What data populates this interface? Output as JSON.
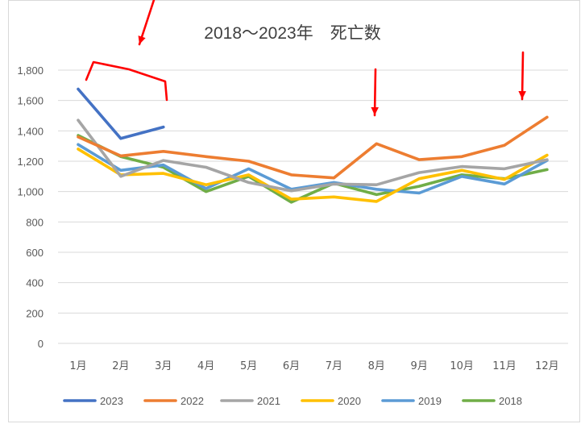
{
  "chart_data": {
    "type": "line",
    "title": "2018～2023年　死亡数",
    "xlabel": "",
    "ylabel": "",
    "categories": [
      "1月",
      "2月",
      "3月",
      "4月",
      "5月",
      "6月",
      "7月",
      "8月",
      "9月",
      "10月",
      "11月",
      "12月"
    ],
    "ylim": [
      0,
      1800
    ],
    "yticks": [
      0,
      200,
      400,
      600,
      800,
      1000,
      1200,
      1400,
      1600,
      1800
    ],
    "ytick_labels": [
      "0",
      "200",
      "400",
      "600",
      "800",
      "1,000",
      "1,200",
      "1,400",
      "1,600",
      "1,800"
    ],
    "grid": true,
    "legend_position": "bottom",
    "series": [
      {
        "name": "2023",
        "color": "#4472c4",
        "values": [
          1675,
          1350,
          1425,
          null,
          null,
          null,
          null,
          null,
          null,
          null,
          null,
          null
        ]
      },
      {
        "name": "2022",
        "color": "#ed7d31",
        "values": [
          1360,
          1235,
          1265,
          1230,
          1200,
          1110,
          1090,
          1315,
          1210,
          1230,
          1305,
          1490
        ]
      },
      {
        "name": "2021",
        "color": "#a5a5a5",
        "values": [
          1470,
          1100,
          1205,
          1160,
          1060,
          1005,
          1050,
          1045,
          1125,
          1165,
          1150,
          1210
        ]
      },
      {
        "name": "2020",
        "color": "#ffc000",
        "values": [
          1280,
          1110,
          1120,
          1045,
          1110,
          950,
          965,
          935,
          1085,
          1140,
          1080,
          1240
        ]
      },
      {
        "name": "2019",
        "color": "#5b9bd5",
        "values": [
          1310,
          1140,
          1175,
          1020,
          1150,
          1015,
          1060,
          1015,
          990,
          1100,
          1050,
          1205
        ]
      },
      {
        "name": "2018",
        "color": "#70ad47",
        "values": [
          1370,
          1230,
          1160,
          1000,
          1100,
          930,
          1055,
          980,
          1035,
          1110,
          1085,
          1145
        ]
      }
    ],
    "annotations": [
      {
        "type": "bracket",
        "color": "#ff0000",
        "target": [
          "1月",
          "3月"
        ],
        "series": "2023"
      },
      {
        "type": "arrow",
        "color": "#ff0000",
        "target": "3月"
      },
      {
        "type": "arrow",
        "color": "#ff0000",
        "target": "8月"
      },
      {
        "type": "arrow",
        "color": "#ff0000",
        "target": "12月"
      }
    ]
  }
}
